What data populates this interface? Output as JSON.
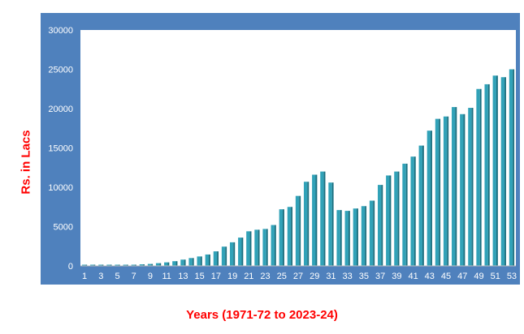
{
  "chart_data": {
    "type": "bar",
    "title": "",
    "xlabel": "Years (1971-72 to 2023-24)",
    "ylabel": "Rs. in Lacs",
    "ylim": [
      0,
      30000
    ],
    "yticks": [
      0,
      5000,
      10000,
      15000,
      20000,
      25000,
      30000
    ],
    "xtick_labels": [
      "1",
      "3",
      "5",
      "7",
      "9",
      "11",
      "13",
      "15",
      "17",
      "19",
      "21",
      "23",
      "25",
      "27",
      "29",
      "31",
      "33",
      "35",
      "37",
      "39",
      "41",
      "43",
      "45",
      "47",
      "49",
      "51",
      "53"
    ],
    "categories": [
      1,
      2,
      3,
      4,
      5,
      6,
      7,
      8,
      9,
      10,
      11,
      12,
      13,
      14,
      15,
      16,
      17,
      18,
      19,
      20,
      21,
      22,
      23,
      24,
      25,
      26,
      27,
      28,
      29,
      30,
      31,
      32,
      33,
      34,
      35,
      36,
      37,
      38,
      39,
      40,
      41,
      42,
      43,
      44,
      45,
      46,
      47,
      48,
      49,
      50,
      51,
      52,
      53
    ],
    "values": [
      40,
      50,
      60,
      70,
      80,
      100,
      150,
      200,
      250,
      350,
      450,
      600,
      800,
      1000,
      1200,
      1450,
      1850,
      2450,
      3000,
      3600,
      4400,
      4600,
      4700,
      5200,
      7200,
      7500,
      8900,
      10700,
      11600,
      12000,
      10600,
      7100,
      7000,
      7300,
      7600,
      8300,
      10300,
      11500,
      12000,
      13000,
      13900,
      15300,
      17200,
      18700,
      19000,
      20200,
      19300,
      20100,
      22500,
      23100,
      24200,
      24000,
      25000
    ],
    "grid": false,
    "legend": "none",
    "colors": {
      "plot_bg": "#ffffff",
      "frame_bg": "#4f81bd",
      "bar": "#31a2b8",
      "bar_dark": "#1a6f7f",
      "label": "#ff0000"
    }
  }
}
